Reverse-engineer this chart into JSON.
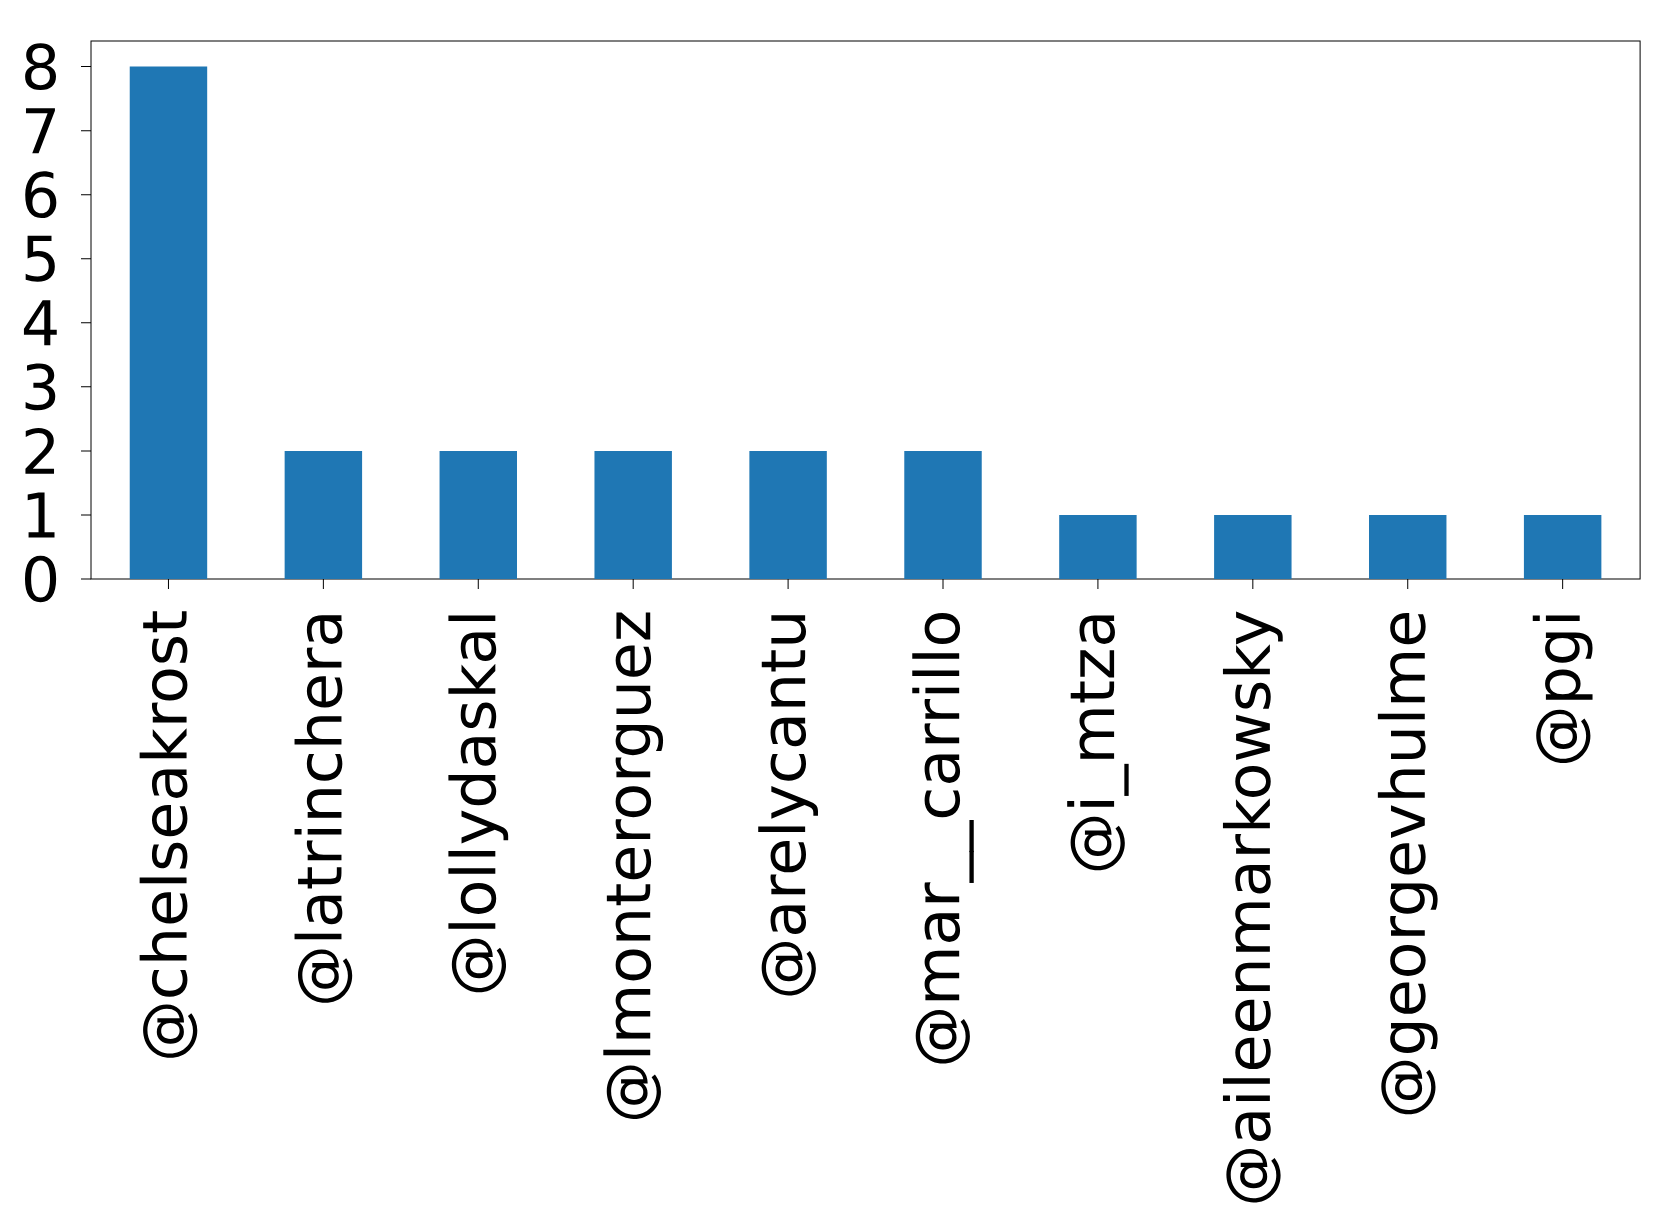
{
  "chart_data": {
    "type": "bar",
    "categories": [
      "@chelseakrost",
      "@latrinchera",
      "@lollydaskal",
      "@lmonterorguez",
      "@arelycantu",
      "@mar__carrillo",
      "@i_mtza",
      "@aileenmarkowsky",
      "@georgevhulme",
      "@pgi"
    ],
    "values": [
      8,
      2,
      2,
      2,
      2,
      2,
      1,
      1,
      1,
      1
    ],
    "color": "#1f77b4",
    "ylim": [
      0,
      8.4
    ],
    "yticks": [
      0,
      1,
      2,
      3,
      4,
      5,
      6,
      7,
      8
    ],
    "grid": false
  }
}
